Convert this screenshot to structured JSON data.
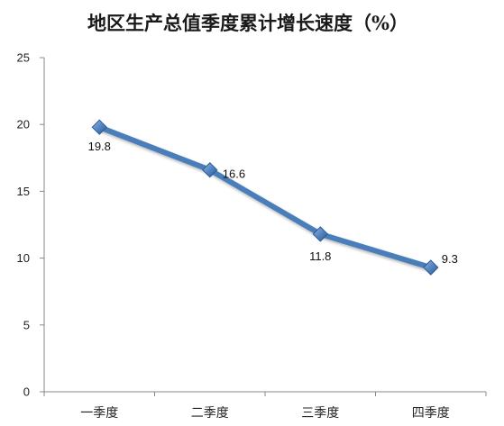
{
  "chart_data": {
    "type": "line",
    "title": "地区生产总值季度累计增长速度（%）",
    "categories": [
      "一季度",
      "二季度",
      "三季度",
      "四季度"
    ],
    "series": [
      {
        "values": [
          19.8,
          16.6,
          11.8,
          9.3
        ],
        "color": "#4a7ebb"
      }
    ],
    "data_labels": [
      "19.8",
      "16.6",
      "11.8",
      "9.3"
    ],
    "yticks": [
      "0",
      "5",
      "10",
      "15",
      "20",
      "25"
    ],
    "ylim": [
      0,
      25
    ],
    "grid": false,
    "legend": "none",
    "marker": "diamond"
  }
}
